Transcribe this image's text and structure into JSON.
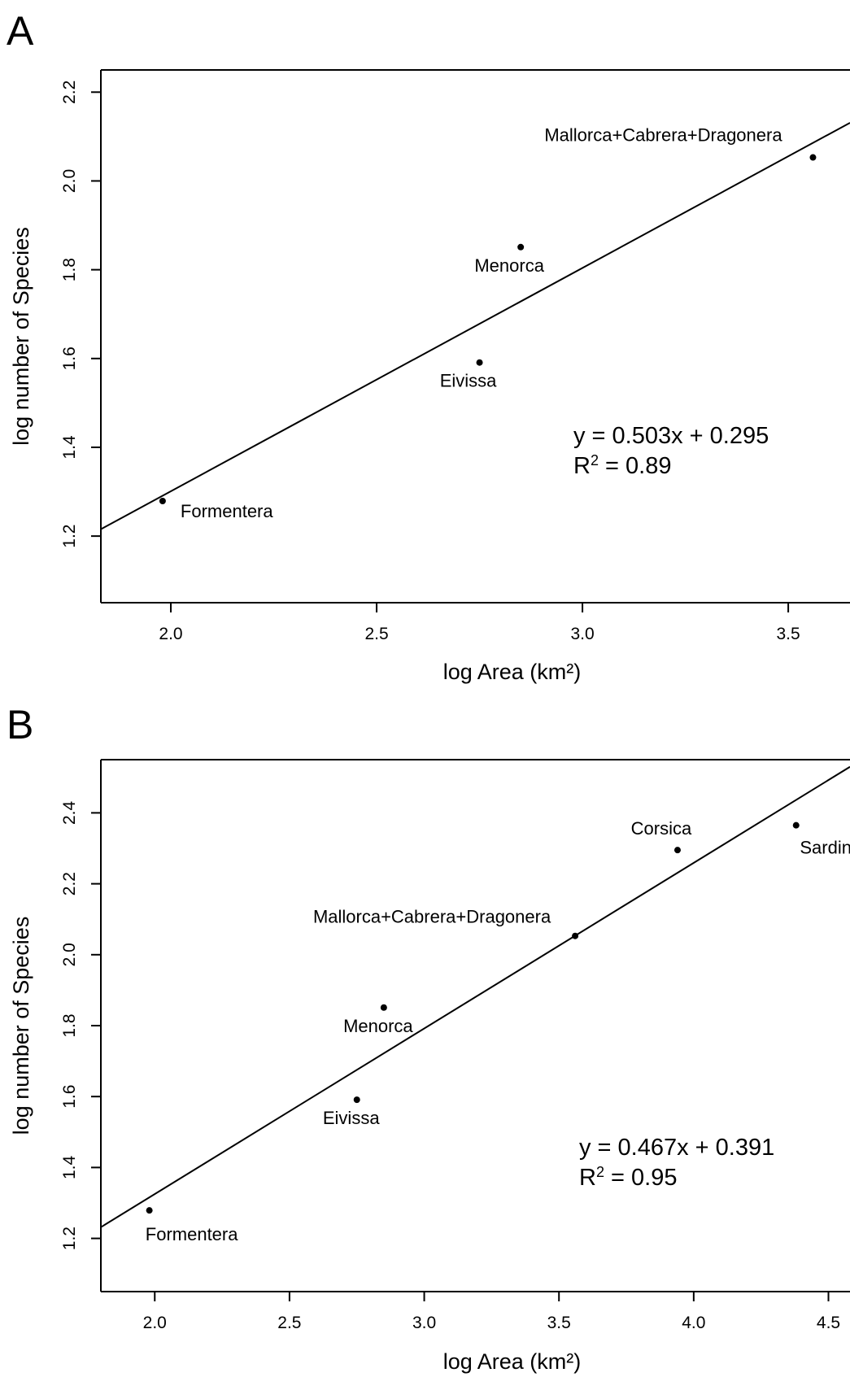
{
  "chart_data": [
    {
      "type": "scatter",
      "panel_label": "A",
      "xlabel": "log Area (km²)",
      "ylabel": "log number of Species",
      "xlim": [
        1.83,
        3.65
      ],
      "ylim": [
        1.05,
        2.25
      ],
      "xticks": [
        2.0,
        2.5,
        3.0,
        3.5
      ],
      "xtick_labels": [
        "2.0",
        "2.5",
        "3.0",
        "3.5"
      ],
      "yticks": [
        1.2,
        1.4,
        1.6,
        1.8,
        2.0,
        2.2
      ],
      "ytick_labels": [
        "1.2",
        "1.4",
        "1.6",
        "1.8",
        "2.0",
        "2.2"
      ],
      "grid": false,
      "points": [
        {
          "label": "Formentera",
          "x": 1.98,
          "y": 1.279,
          "label_pos": "right"
        },
        {
          "label": "Eivissa",
          "x": 2.75,
          "y": 1.591,
          "label_pos": "below-left"
        },
        {
          "label": "Menorca",
          "x": 2.85,
          "y": 1.851,
          "label_pos": "below-left"
        },
        {
          "label": "Mallorca+Cabrera+Dragonera",
          "x": 3.56,
          "y": 2.053,
          "label_pos": "above-left"
        }
      ],
      "fit": {
        "slope": 0.503,
        "intercept": 0.295
      },
      "equation": "y = 0.503x + 0.295",
      "r2_label": "R",
      "r2_sup": "2",
      "r2_value": "= 0.89"
    },
    {
      "type": "scatter",
      "panel_label": "B",
      "xlabel": "log Area (km²)",
      "ylabel": "log number of Species",
      "xlim": [
        1.8,
        4.58
      ],
      "ylim": [
        1.05,
        2.55
      ],
      "xticks": [
        2.0,
        2.5,
        3.0,
        3.5,
        4.0,
        4.5
      ],
      "xtick_labels": [
        "2.0",
        "2.5",
        "3.0",
        "3.5",
        "4.0",
        "4.5"
      ],
      "yticks": [
        1.2,
        1.4,
        1.6,
        1.8,
        2.0,
        2.2,
        2.4
      ],
      "ytick_labels": [
        "1.2",
        "1.4",
        "1.6",
        "1.8",
        "2.0",
        "2.2",
        "2.4"
      ],
      "grid": false,
      "points": [
        {
          "label": "Formentera",
          "x": 1.98,
          "y": 1.279,
          "label_pos": "below"
        },
        {
          "label": "Eivissa",
          "x": 2.75,
          "y": 1.591,
          "label_pos": "below-left"
        },
        {
          "label": "Menorca",
          "x": 2.85,
          "y": 1.851,
          "label_pos": "below-left"
        },
        {
          "label": "Mallorca+Cabrera+Dragonera",
          "x": 3.56,
          "y": 2.053,
          "label_pos": "above-left"
        },
        {
          "label": "Corsica",
          "x": 3.94,
          "y": 2.295,
          "label_pos": "above"
        },
        {
          "label": "Sardinia",
          "x": 4.38,
          "y": 2.365,
          "label_pos": "below"
        }
      ],
      "fit": {
        "slope": 0.467,
        "intercept": 0.391
      },
      "equation": "y = 0.467x + 0.391",
      "r2_label": "R",
      "r2_sup": "2",
      "r2_value": "= 0.95"
    }
  ]
}
